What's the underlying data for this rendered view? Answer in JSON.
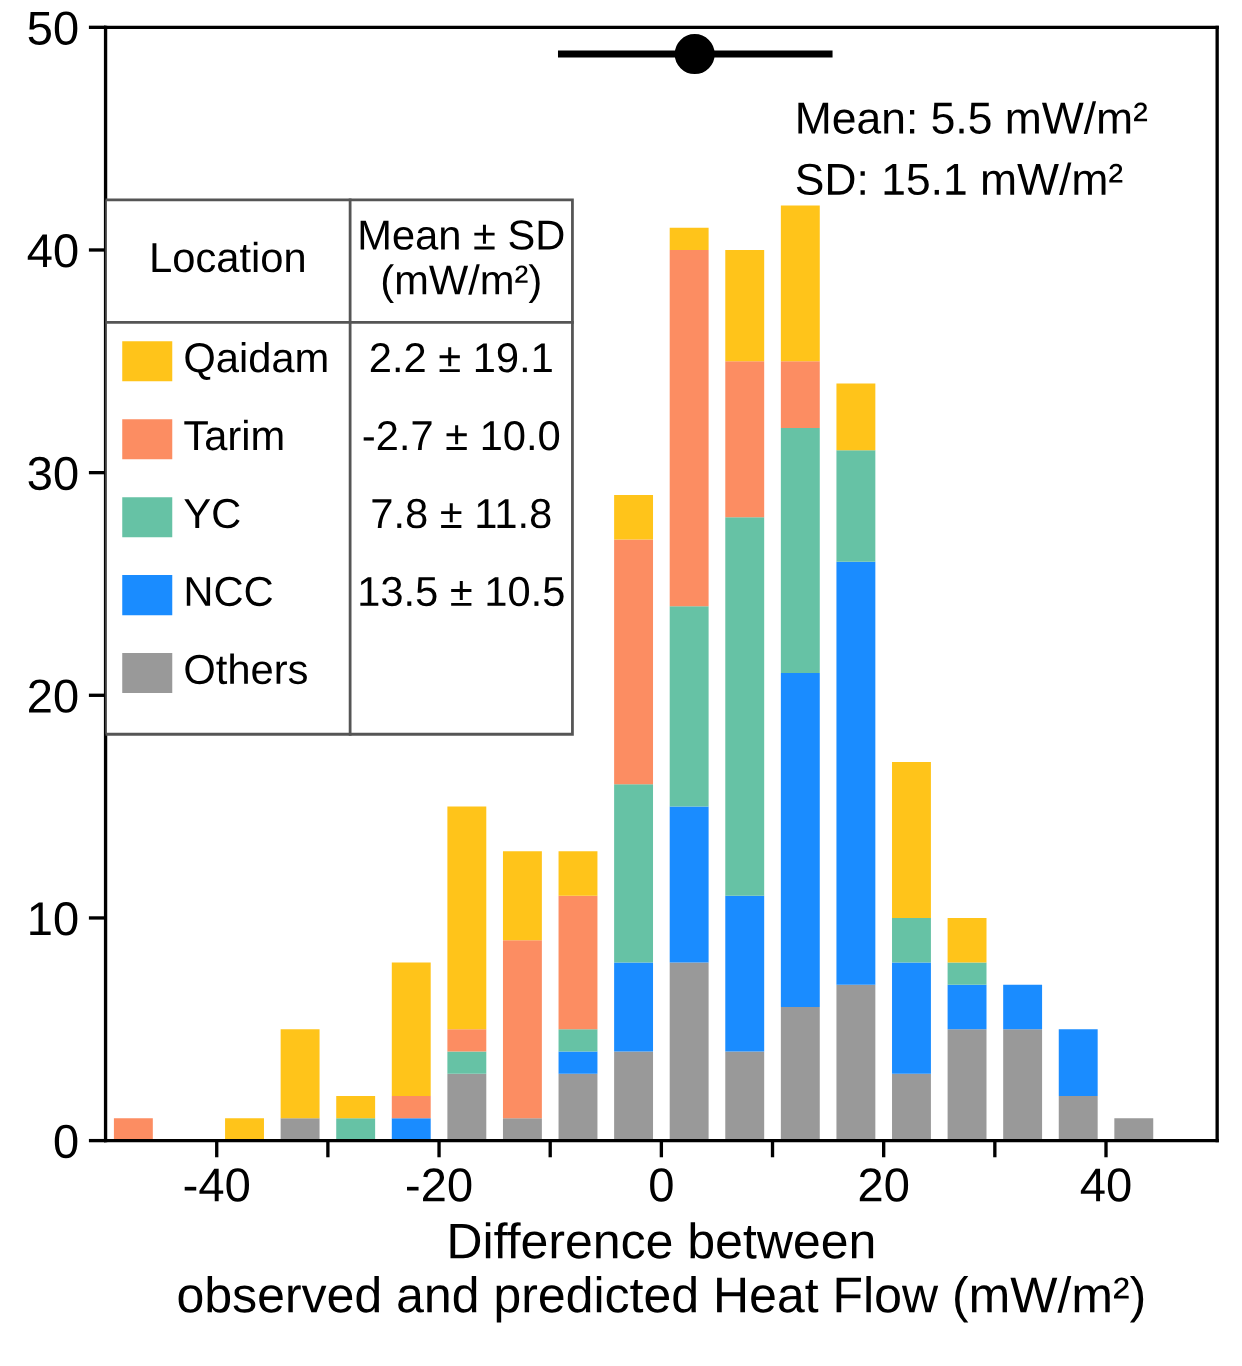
{
  "chart_data": {
    "type": "bar",
    "stacked": true,
    "xlabel": "Difference between\nobserved and predicted Heat Flow (mW/m²)",
    "x": [
      -47.5,
      -42.5,
      -37.5,
      -32.5,
      -27.5,
      -22.5,
      -17.5,
      -12.5,
      -7.5,
      -2.5,
      2.5,
      7.5,
      12.5,
      17.5,
      22.5,
      27.5,
      32.5,
      37.5,
      42.5
    ],
    "series": [
      {
        "name": "Others",
        "color": "#999999",
        "values": [
          0,
          0,
          0,
          1,
          0,
          0,
          3,
          1,
          3,
          4,
          8,
          4,
          6,
          7,
          3,
          5,
          5,
          2,
          1
        ]
      },
      {
        "name": "NCC",
        "color": "#1a8cff",
        "values": [
          0,
          0,
          0,
          0,
          0,
          1,
          0,
          0,
          1,
          4,
          7,
          7,
          15,
          19,
          5,
          2,
          2,
          3,
          0
        ]
      },
      {
        "name": "YC",
        "color": "#66c2a5",
        "values": [
          0,
          0,
          0,
          0,
          1,
          0,
          1,
          0,
          1,
          8,
          9,
          17,
          11,
          5,
          2,
          1,
          0,
          0,
          0
        ]
      },
      {
        "name": "Tarim",
        "color": "#fc8d62",
        "values": [
          1,
          0,
          0,
          0,
          0,
          1,
          1,
          8,
          6,
          11,
          16,
          7,
          3,
          0,
          0,
          0,
          0,
          0,
          0
        ]
      },
      {
        "name": "Qaidam",
        "color": "#ffc41a",
        "values": [
          0,
          0,
          1,
          4,
          1,
          6,
          10,
          4,
          2,
          2,
          1,
          5,
          7,
          3,
          7,
          2,
          0,
          0,
          0
        ]
      },
      {
        "type": "scatter",
        "color": "#000000",
        "x": [
          3
        ],
        "values": [
          48.8
        ],
        "xerrors": [
          [
            -9.3,
            15.4
          ]
        ],
        "marker": "circle"
      }
    ],
    "legend": "top left",
    "xlim": [
      -50,
      50
    ],
    "ylim": [
      0,
      50
    ],
    "xticks": [
      -40,
      {
        "value": -30,
        "label": null
      },
      -20,
      {
        "value": -10,
        "label": null
      },
      0,
      {
        "value": 10,
        "label": null
      },
      20,
      {
        "value": 30,
        "label": null
      },
      40
    ],
    "yticks": [
      0,
      10,
      20,
      30,
      40,
      50
    ],
    "annotations": [
      "Mean: 5.5 mW/m²",
      "SD: 15.1 mW/m²",
      "Location",
      "Mean ± SD\n(mW/m²)",
      "2.2 ± 19.1",
      "-2.7 ± 10.0",
      "7.8 ± 11.8",
      "13.5 ± 10.5"
    ]
  }
}
